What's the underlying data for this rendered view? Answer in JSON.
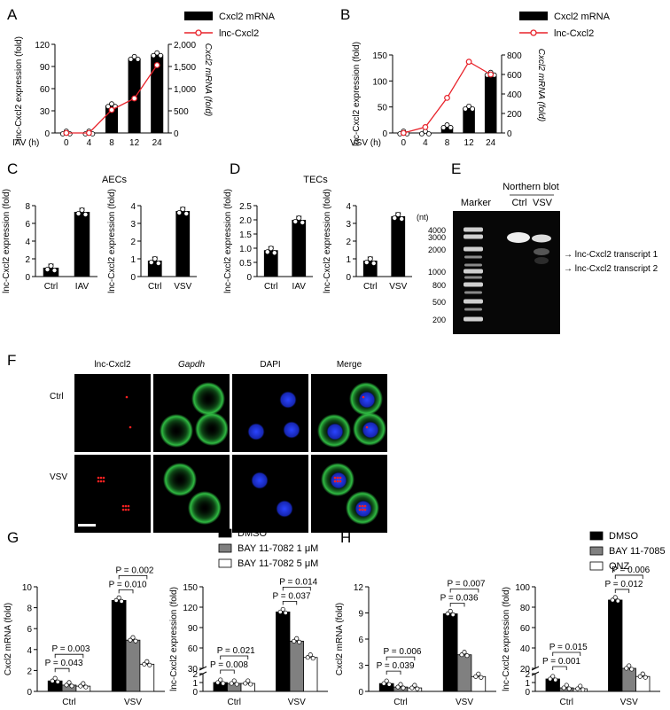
{
  "panel_letters": {
    "A": "A",
    "B": "B",
    "C": "C",
    "D": "D",
    "E": "E",
    "F": "F",
    "G": "G",
    "H": "H"
  },
  "colors": {
    "bar": "#000000",
    "gray": "#808080",
    "line": "#e8222a",
    "green": "#2ecc40",
    "blue": "#1f3cff"
  },
  "chart_data": [
    {
      "id": "A",
      "type": "bar",
      "categories": [
        "0",
        "4",
        "8",
        "12",
        "24"
      ],
      "xprefix": "IAV (h)",
      "ylabel": "lnc-Cxcl2 expression (fold)",
      "ylabel_right": "Cxcl2 mRNA (fold)",
      "ylim": [
        0,
        120
      ],
      "yticks": [
        "0",
        "30",
        "60",
        "90",
        "120"
      ],
      "ylim_right": [
        0,
        2000
      ],
      "yticks_right": [
        "0",
        "500",
        "1,000",
        "1,500",
        "2,000"
      ],
      "series": [
        {
          "name": "Cxcl2 mRNA",
          "values": [
            0,
            0,
            37,
            101,
            106
          ]
        },
        {
          "name": "lnc-Cxcl2",
          "axis": "right",
          "values": [
            0,
            0,
            520,
            780,
            1530
          ]
        }
      ]
    },
    {
      "id": "B",
      "type": "bar",
      "categories": [
        "0",
        "4",
        "8",
        "12",
        "24"
      ],
      "xprefix": "VSV (h)",
      "ylabel": "lnc-Cxcl2 expression (fold)",
      "ylabel_right": "Cxcl2 mRNA (fold)",
      "ylim": [
        0,
        150
      ],
      "yticks": [
        "0",
        "50",
        "100",
        "150"
      ],
      "ylim_right": [
        0,
        800
      ],
      "yticks_right": [
        "0",
        "200",
        "400",
        "600",
        "800"
      ],
      "series": [
        {
          "name": "Cxcl2 mRNA",
          "values": [
            0,
            0,
            12,
            48,
            113
          ]
        },
        {
          "name": "lnc-Cxcl2",
          "axis": "right",
          "values": [
            0,
            60,
            360,
            730,
            600
          ]
        }
      ]
    },
    {
      "id": "C1",
      "type": "bar",
      "categories": [
        "Ctrl",
        "IAV"
      ],
      "values": [
        1.0,
        7.3
      ],
      "ylabel": "lnc-Cxcl2 expression (fold)",
      "ylim": [
        0,
        8
      ],
      "yticks": [
        "0",
        "2",
        "4",
        "6",
        "8"
      ]
    },
    {
      "id": "C2",
      "type": "bar",
      "categories": [
        "Ctrl",
        "VSV"
      ],
      "values": [
        0.9,
        3.7
      ],
      "ylabel": "lnc-Cxcl2 expression (fold)",
      "ylim": [
        0,
        4
      ],
      "yticks": [
        "0",
        "1",
        "2",
        "3",
        "4"
      ]
    },
    {
      "id": "D1",
      "type": "bar",
      "categories": [
        "Ctrl",
        "IAV"
      ],
      "values": [
        0.93,
        2.0
      ],
      "ylabel": "lnc-Cxcl2 expression (fold)",
      "ylim": [
        0,
        2.5
      ],
      "yticks": [
        "0",
        "0.5",
        "1.0",
        "1.5",
        "2.0",
        "2.5"
      ]
    },
    {
      "id": "D2",
      "type": "bar",
      "categories": [
        "Ctrl",
        "VSV"
      ],
      "values": [
        0.9,
        3.4
      ],
      "ylabel": "lnc-Cxcl2 expression (fold)",
      "ylim": [
        0,
        4
      ],
      "yticks": [
        "0",
        "1",
        "2",
        "3",
        "4"
      ]
    },
    {
      "id": "G1",
      "type": "bar",
      "categories": [
        "Ctrl",
        "VSV"
      ],
      "ylabel": "Cxcl2 mRNA (fold)",
      "ylim": [
        0,
        10
      ],
      "yticks": [
        "0",
        "2",
        "4",
        "6",
        "8",
        "10"
      ],
      "series": [
        {
          "name": "DMSO",
          "values": [
            1.0,
            8.7
          ]
        },
        {
          "name": "BAY 11-7082 1 μM",
          "values": [
            0.6,
            4.9
          ]
        },
        {
          "name": "BAY 11-7082 5 μM",
          "values": [
            0.5,
            2.6
          ]
        }
      ],
      "pvalues": [
        "P = 0.043",
        "P = 0.003",
        "P = 0.010",
        "P = 0.002"
      ]
    },
    {
      "id": "G2",
      "type": "bar",
      "categories": [
        "Ctrl",
        "VSV"
      ],
      "ylabel": "lnc-Cxcl2 expression (fold)",
      "ylim": [
        0,
        150
      ],
      "yticks": [
        "0",
        "1",
        "2",
        "30",
        "60",
        "90",
        "120",
        "150"
      ],
      "series": [
        {
          "name": "DMSO",
          "values": [
            1.0,
            113
          ]
        },
        {
          "name": "BAY 11-7082 1 μM",
          "values": [
            0.9,
            70
          ]
        },
        {
          "name": "BAY 11-7082 5 μM",
          "values": [
            0.9,
            46
          ]
        }
      ],
      "pvalues": [
        "P = 0.008",
        "P = 0.021",
        "P = 0.037",
        "P = 0.014"
      ]
    },
    {
      "id": "H1",
      "type": "bar",
      "categories": [
        "Ctrl",
        "VSV"
      ],
      "ylabel": "Cxcl2 mRNA (fold)",
      "ylim": [
        0,
        12
      ],
      "yticks": [
        "0",
        "3",
        "6",
        "9",
        "12"
      ],
      "series": [
        {
          "name": "DMSO",
          "values": [
            0.9,
            8.9
          ]
        },
        {
          "name": "BAY 11-7085",
          "values": [
            0.5,
            4.2
          ]
        },
        {
          "name": "QNZ",
          "values": [
            0.4,
            1.7
          ]
        }
      ],
      "pvalues": [
        "P = 0.039",
        "P = 0.006",
        "P = 0.036",
        "P = 0.007"
      ]
    },
    {
      "id": "H2",
      "type": "bar",
      "categories": [
        "Ctrl",
        "VSV"
      ],
      "ylabel": "lnc-Cxcl2 expression (fold)",
      "ylim": [
        0,
        100
      ],
      "yticks": [
        "0",
        "1",
        "2",
        "20",
        "40",
        "60",
        "80",
        "100"
      ],
      "series": [
        {
          "name": "DMSO",
          "values": [
            1.4,
            87
          ]
        },
        {
          "name": "BAY 11-7085",
          "values": [
            0.4,
            20
          ]
        },
        {
          "name": "QNZ",
          "values": [
            0.3,
            12
          ]
        }
      ],
      "pvalues": [
        "P = 0.001",
        "P = 0.015",
        "P = 0.012",
        "P = 0.006"
      ]
    }
  ],
  "legend_AB": {
    "bar": "Cxcl2 mRNA",
    "line": "lnc-Cxcl2"
  },
  "titles": {
    "C": "AECs",
    "D": "TECs"
  },
  "blot": {
    "title": "Northern blot",
    "marker": "Marker",
    "unit": "(nt)",
    "lanes": [
      "Ctrl",
      "VSV"
    ],
    "sizes": [
      "4000",
      "3000",
      "2000",
      "1000",
      "800",
      "500",
      "200"
    ],
    "transcripts": [
      "lnc-Cxcl2 transcript 1",
      "lnc-Cxcl2 transcript 2"
    ]
  },
  "micro": {
    "columns": [
      "lnc-Cxcl2",
      "Gapdh",
      "DAPI",
      "Merge"
    ],
    "rows": [
      "Ctrl",
      "VSV"
    ]
  },
  "legend_G": [
    "DMSO",
    "BAY 11-7082 1 μM",
    "BAY 11-7082 5 μM"
  ],
  "legend_H": [
    "DMSO",
    "BAY 11-7085",
    "QNZ"
  ]
}
